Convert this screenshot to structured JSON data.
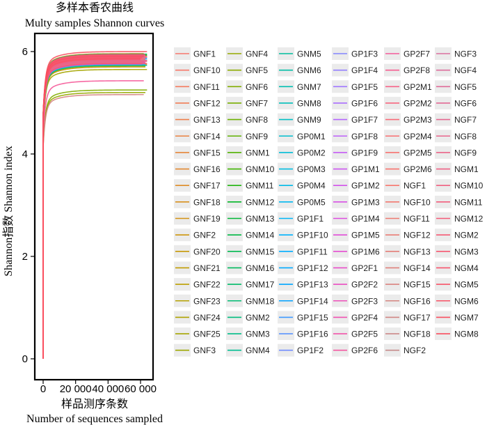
{
  "chart_data": {
    "type": "line",
    "title": "多样本香农曲线",
    "subtitle": "Multy samples Shannon curves",
    "xlabel_cn": "样品测序条数",
    "xlabel_en": "Number of sequences sampled",
    "ylabel": "Shannon指数  Shannon index",
    "xlim": [
      0,
      65000
    ],
    "ylim": [
      0,
      6.3
    ],
    "x_ticks": [
      0,
      20000,
      40000,
      60000
    ],
    "x_tick_labels": [
      "0",
      "20 000",
      "40 000",
      "60 000"
    ],
    "y_ticks": [
      0,
      2,
      4,
      6
    ],
    "y_tick_labels": [
      "0",
      "2",
      "4",
      "6"
    ],
    "grid": false,
    "legend_position": "right",
    "legend_columns": 7,
    "series": [
      {
        "name": "GNF1",
        "color": "#F8766D",
        "plateau": 5.95,
        "x_end": 62000
      },
      {
        "name": "GNF10",
        "color": "#F7786A",
        "plateau": 5.9,
        "x_end": 61000
      },
      {
        "name": "GNF11",
        "color": "#F47A5E",
        "plateau": 5.85,
        "x_end": 63000
      },
      {
        "name": "GNF12",
        "color": "#F17D55",
        "plateau": 5.88,
        "x_end": 60000
      },
      {
        "name": "GNF13",
        "color": "#EE7F4B",
        "plateau": 5.92,
        "x_end": 64000
      },
      {
        "name": "GNF14",
        "color": "#EA8241",
        "plateau": 5.8,
        "x_end": 62000
      },
      {
        "name": "GNF15",
        "color": "#E68538",
        "plateau": 5.93,
        "x_end": 61000
      },
      {
        "name": "GNF16",
        "color": "#E2882F",
        "plateau": 5.78,
        "x_end": 63000
      },
      {
        "name": "GNF17",
        "color": "#DD8B25",
        "plateau": 5.9,
        "x_end": 60000
      },
      {
        "name": "GNF18",
        "color": "#D88F1C",
        "plateau": 5.96,
        "x_end": 62000
      },
      {
        "name": "GNF19",
        "color": "#D39213",
        "plateau": 5.75,
        "x_end": 64000
      },
      {
        "name": "GNF2",
        "color": "#CD950B",
        "plateau": 5.88,
        "x_end": 61000
      },
      {
        "name": "GNF20",
        "color": "#C79805",
        "plateau": 5.7,
        "x_end": 63000
      },
      {
        "name": "GNF21",
        "color": "#C19B00",
        "plateau": 5.84,
        "x_end": 62000
      },
      {
        "name": "GNF22",
        "color": "#BB9E00",
        "plateau": 5.9,
        "x_end": 60000
      },
      {
        "name": "GNF23",
        "color": "#B4A000",
        "plateau": 5.82,
        "x_end": 63000
      },
      {
        "name": "GNF24",
        "color": "#ADA200",
        "plateau": 5.78,
        "x_end": 61000
      },
      {
        "name": "GNF25",
        "color": "#A5A500",
        "plateau": 5.65,
        "x_end": 64000
      },
      {
        "name": "GNF3",
        "color": "#9DA700",
        "plateau": 5.86,
        "x_end": 62000
      },
      {
        "name": "GNF4",
        "color": "#95A900",
        "plateau": 5.2,
        "x_end": 63000
      },
      {
        "name": "GNF5",
        "color": "#8CAB00",
        "plateau": 5.91,
        "x_end": 60000
      },
      {
        "name": "GNF6",
        "color": "#82AD00",
        "plateau": 5.25,
        "x_end": 64000
      },
      {
        "name": "GNF7",
        "color": "#78AE00",
        "plateau": 5.87,
        "x_end": 61000
      },
      {
        "name": "GNF8",
        "color": "#6DB000",
        "plateau": 5.8,
        "x_end": 62000
      },
      {
        "name": "GNF9",
        "color": "#60B100",
        "plateau": 5.72,
        "x_end": 63000
      },
      {
        "name": "GNM1",
        "color": "#51B200",
        "plateau": 5.89,
        "x_end": 60000
      },
      {
        "name": "GNM10",
        "color": "#3EB400",
        "plateau": 5.84,
        "x_end": 62000
      },
      {
        "name": "GNM11",
        "color": "#21B50F",
        "plateau": 5.93,
        "x_end": 64000
      },
      {
        "name": "GNM12",
        "color": "#00B625",
        "plateau": 5.77,
        "x_end": 61000
      },
      {
        "name": "GNM13",
        "color": "#00B735",
        "plateau": 5.86,
        "x_end": 63000
      },
      {
        "name": "GNM14",
        "color": "#00B843",
        "plateau": 5.9,
        "x_end": 60000
      },
      {
        "name": "GNM15",
        "color": "#00B950",
        "plateau": 5.82,
        "x_end": 62000
      },
      {
        "name": "GNM16",
        "color": "#00BA5C",
        "plateau": 5.95,
        "x_end": 64000
      },
      {
        "name": "GNM17",
        "color": "#00BA67",
        "plateau": 5.79,
        "x_end": 61000
      },
      {
        "name": "GNM18",
        "color": "#00BB72",
        "plateau": 5.88,
        "x_end": 63000
      },
      {
        "name": "GNM2",
        "color": "#00BC7D",
        "plateau": 5.84,
        "x_end": 60000
      },
      {
        "name": "GNM3",
        "color": "#00BC88",
        "plateau": 5.91,
        "x_end": 62000
      },
      {
        "name": "GNM4",
        "color": "#00BD92",
        "plateau": 5.73,
        "x_end": 64000
      },
      {
        "name": "GNM5",
        "color": "#00BE9C",
        "plateau": 5.87,
        "x_end": 61000
      },
      {
        "name": "GNM6",
        "color": "#00BEA6",
        "plateau": 5.92,
        "x_end": 63000
      },
      {
        "name": "GNM7",
        "color": "#00BFB0",
        "plateau": 5.8,
        "x_end": 60000
      },
      {
        "name": "GNM8",
        "color": "#00BFBA",
        "plateau": 5.85,
        "x_end": 62000
      },
      {
        "name": "GNM9",
        "color": "#00BFC4",
        "plateau": 5.9,
        "x_end": 64000
      },
      {
        "name": "GP0M1",
        "color": "#00BECE",
        "plateau": 5.76,
        "x_end": 61000
      },
      {
        "name": "GP0M2",
        "color": "#00BDD7",
        "plateau": 5.88,
        "x_end": 63000
      },
      {
        "name": "GP0M3",
        "color": "#00BCE0",
        "plateau": 5.94,
        "x_end": 60000
      },
      {
        "name": "GP0M4",
        "color": "#00BAE8",
        "plateau": 5.81,
        "x_end": 62000
      },
      {
        "name": "GP0M5",
        "color": "#00B8F0",
        "plateau": 5.86,
        "x_end": 64000
      },
      {
        "name": "GP1F1",
        "color": "#00B5F7",
        "plateau": 5.9,
        "x_end": 61000
      },
      {
        "name": "GP1F10",
        "color": "#00B2FD",
        "plateau": 5.78,
        "x_end": 63000
      },
      {
        "name": "GP1F11",
        "color": "#00AEFF",
        "plateau": 5.87,
        "x_end": 60000
      },
      {
        "name": "GP1F12",
        "color": "#00AAFF",
        "plateau": 5.92,
        "x_end": 62000
      },
      {
        "name": "GP1F13",
        "color": "#00A5FF",
        "plateau": 5.83,
        "x_end": 64000
      },
      {
        "name": "GP1F14",
        "color": "#00A0FF",
        "plateau": 5.89,
        "x_end": 61000
      },
      {
        "name": "GP1F15",
        "color": "#3D9AFF",
        "plateau": 5.75,
        "x_end": 63000
      },
      {
        "name": "GP1F16",
        "color": "#5B94FF",
        "plateau": 5.91,
        "x_end": 60000
      },
      {
        "name": "GP1F2",
        "color": "#718DFF",
        "plateau": 5.85,
        "x_end": 62000
      },
      {
        "name": "GP1F3",
        "color": "#8385FF",
        "plateau": 5.88,
        "x_end": 64000
      },
      {
        "name": "GP1F4",
        "color": "#927DFF",
        "plateau": 5.8,
        "x_end": 61000
      },
      {
        "name": "GP1F5",
        "color": "#9F75FF",
        "plateau": 5.93,
        "x_end": 63000
      },
      {
        "name": "GP1F6",
        "color": "#AA6DFF",
        "plateau": 5.86,
        "x_end": 60000
      },
      {
        "name": "GP1F7",
        "color": "#B465FD",
        "plateau": 5.9,
        "x_end": 62000
      },
      {
        "name": "GP1F8",
        "color": "#BD5FF9",
        "plateau": 5.82,
        "x_end": 64000
      },
      {
        "name": "GP1F9",
        "color": "#C55AF5",
        "plateau": 5.87,
        "x_end": 61000
      },
      {
        "name": "GP1M1",
        "color": "#CC55F0",
        "plateau": 5.79,
        "x_end": 63000
      },
      {
        "name": "GP1M2",
        "color": "#D252EB",
        "plateau": 5.92,
        "x_end": 60000
      },
      {
        "name": "GP1M3",
        "color": "#D84FE5",
        "plateau": 5.84,
        "x_end": 62000
      },
      {
        "name": "GP1M4",
        "color": "#DD4DDF",
        "plateau": 5.89,
        "x_end": 64000
      },
      {
        "name": "GP1M5",
        "color": "#E14CD8",
        "plateau": 5.76,
        "x_end": 61000
      },
      {
        "name": "GP1M6",
        "color": "#E54CD1",
        "plateau": 5.91,
        "x_end": 63000
      },
      {
        "name": "GP2F1",
        "color": "#E84CCA",
        "plateau": 5.85,
        "x_end": 60000
      },
      {
        "name": "GP2F2",
        "color": "#EB4DC2",
        "plateau": 5.88,
        "x_end": 62000
      },
      {
        "name": "GP2F3",
        "color": "#EE4FBA",
        "plateau": 5.81,
        "x_end": 64000
      },
      {
        "name": "GP2F4",
        "color": "#F051B2",
        "plateau": 5.94,
        "x_end": 61000
      },
      {
        "name": "GP2F5",
        "color": "#F254AA",
        "plateau": 5.86,
        "x_end": 63000
      },
      {
        "name": "GP2F6",
        "color": "#F457A1",
        "plateau": 5.9,
        "x_end": 60000
      },
      {
        "name": "GP2F7",
        "color": "#F55A99",
        "plateau": 5.43,
        "x_end": 62000
      },
      {
        "name": "GP2F8",
        "color": "#F65E91",
        "plateau": 5.83,
        "x_end": 64000
      },
      {
        "name": "GP2M1",
        "color": "#F76288",
        "plateau": 5.89,
        "x_end": 61000
      },
      {
        "name": "GP2M2",
        "color": "#F7667F",
        "plateau": 5.78,
        "x_end": 63000
      },
      {
        "name": "GP2M3",
        "color": "#F86A77",
        "plateau": 5.92,
        "x_end": 60000
      },
      {
        "name": "GP2M4",
        "color": "#F86E71",
        "plateau": 5.85,
        "x_end": 62000
      },
      {
        "name": "GP2M5",
        "color": "#F8716E",
        "plateau": 5.9,
        "x_end": 64000
      },
      {
        "name": "GP2M6",
        "color": "#F8736D",
        "plateau": 5.8,
        "x_end": 61000
      },
      {
        "name": "NGF1",
        "color": "#F8766D",
        "plateau": 5.87,
        "x_end": 63000
      },
      {
        "name": "NGF10",
        "color": "#F3786F",
        "plateau": 5.93,
        "x_end": 60000
      },
      {
        "name": "NGF11",
        "color": "#EE7A72",
        "plateau": 5.84,
        "x_end": 62000
      },
      {
        "name": "NGF12",
        "color": "#E97C75",
        "plateau": 5.89,
        "x_end": 64000
      },
      {
        "name": "NGF13",
        "color": "#E47E78",
        "plateau": 5.77,
        "x_end": 61000
      },
      {
        "name": "NGF14",
        "color": "#DF807B",
        "plateau": 5.91,
        "x_end": 63000
      },
      {
        "name": "NGF15",
        "color": "#DA827E",
        "plateau": 5.86,
        "x_end": 60000
      },
      {
        "name": "NGF16",
        "color": "#D58481",
        "plateau": 5.16,
        "x_end": 62000
      },
      {
        "name": "NGF17",
        "color": "#D08684",
        "plateau": 5.82,
        "x_end": 64000
      },
      {
        "name": "NGF18",
        "color": "#CB8887",
        "plateau": 5.94,
        "x_end": 61000
      },
      {
        "name": "NGF2",
        "color": "#C68A8A",
        "plateau": 5.88,
        "x_end": 63000
      },
      {
        "name": "NGF3",
        "color": "#D96FA0",
        "plateau": 5.9,
        "x_end": 60000
      },
      {
        "name": "NGF4",
        "color": "#DC6D9C",
        "plateau": 5.83,
        "x_end": 62000
      },
      {
        "name": "NGF5",
        "color": "#DF6B98",
        "plateau": 5.89,
        "x_end": 64000
      },
      {
        "name": "NGF6",
        "color": "#E26994",
        "plateau": 5.79,
        "x_end": 61000
      },
      {
        "name": "NGF7",
        "color": "#E56790",
        "plateau": 5.92,
        "x_end": 63000
      },
      {
        "name": "NGF8",
        "color": "#E8658C",
        "plateau": 5.85,
        "x_end": 60000
      },
      {
        "name": "NGF9",
        "color": "#EB6388",
        "plateau": 5.9,
        "x_end": 62000
      },
      {
        "name": "NGM1",
        "color": "#EE6184",
        "plateau": 5.81,
        "x_end": 64000
      },
      {
        "name": "NGM10",
        "color": "#F05F80",
        "plateau": 5.87,
        "x_end": 61000
      },
      {
        "name": "NGM11",
        "color": "#F25D7C",
        "plateau": 5.93,
        "x_end": 63000
      },
      {
        "name": "NGM12",
        "color": "#F45B78",
        "plateau": 5.84,
        "x_end": 60000
      },
      {
        "name": "NGM2",
        "color": "#F55974",
        "plateau": 5.9,
        "x_end": 62000
      },
      {
        "name": "NGM3",
        "color": "#F65770",
        "plateau": 5.77,
        "x_end": 64000
      },
      {
        "name": "NGM4",
        "color": "#F7556C",
        "plateau": 5.88,
        "x_end": 61000
      },
      {
        "name": "NGM5",
        "color": "#F85368",
        "plateau": 5.94,
        "x_end": 63000
      },
      {
        "name": "NGM6",
        "color": "#F85164",
        "plateau": 5.86,
        "x_end": 60000
      },
      {
        "name": "NGM7",
        "color": "#F94F60",
        "plateau": 5.91,
        "x_end": 62000
      },
      {
        "name": "NGM8",
        "color": "#F94D5C",
        "plateau": 6.0,
        "x_end": 64000
      }
    ]
  }
}
